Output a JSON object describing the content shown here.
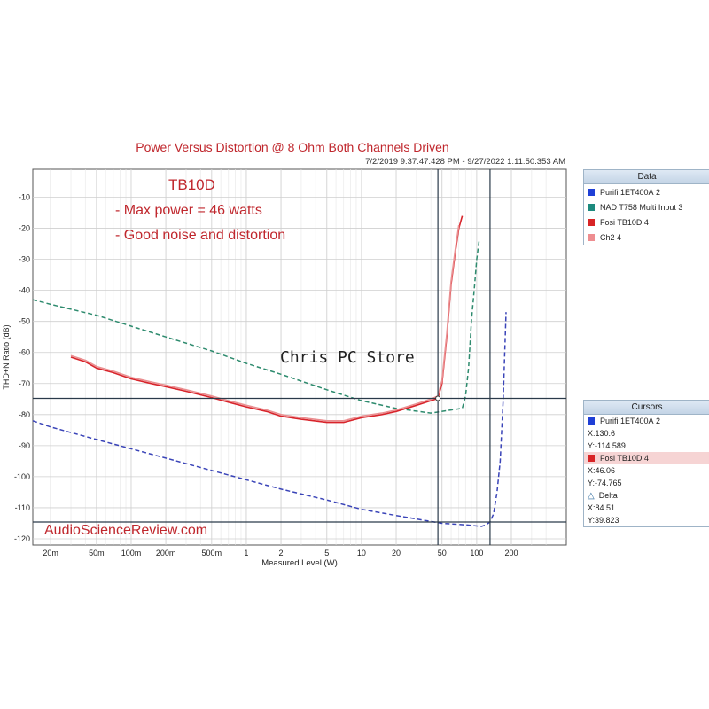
{
  "chart_data": {
    "type": "line",
    "title": "Power Versus Distortion @ 8 Ohm Both Channels Driven",
    "timestamp": "7/2/2019 9:37:47.428 PM - 9/27/2022 1:11:50.353 AM",
    "xlabel": "Measured Level (W)",
    "ylabel": "THD+N Ratio (dB)",
    "x_scale": "log",
    "xlim": [
      0.014,
      600
    ],
    "ylim": [
      -122,
      -1
    ],
    "x_ticks": [
      0.02,
      0.05,
      0.1,
      0.2,
      0.5,
      1,
      2,
      5,
      10,
      20,
      50,
      100,
      200
    ],
    "x_tick_labels": [
      "20m",
      "50m",
      "100m",
      "200m",
      "500m",
      "1",
      "2",
      "5",
      "10",
      "20",
      "50",
      "100",
      "200"
    ],
    "y_ticks": [
      -10,
      -20,
      -30,
      -40,
      -50,
      -60,
      -70,
      -80,
      -90,
      -100,
      -110,
      -120
    ],
    "y_tick_labels": [
      "-10",
      "-20",
      "-30",
      "-40",
      "-50",
      "-60",
      "-70",
      "-80",
      "-90",
      "-100",
      "-110",
      "-120"
    ],
    "grid": true,
    "series": [
      {
        "name": "Purifi 1ET400A",
        "color": "#3a44b8",
        "style": "dashed",
        "x": [
          0.014,
          0.02,
          0.05,
          0.1,
          0.2,
          0.5,
          1,
          2,
          5,
          10,
          20,
          50,
          80,
          110,
          120,
          130,
          140,
          150,
          160,
          170,
          180
        ],
        "y": [
          -82,
          -84,
          -88,
          -91,
          -94,
          -98,
          -101,
          -104,
          -107.5,
          -110.5,
          -112.5,
          -115,
          -115.5,
          -116,
          -115.5,
          -114.6,
          -112,
          -105,
          -95,
          -75,
          -47
        ]
      },
      {
        "name": "NAD T758 Multi Input",
        "color": "#2e8b6e",
        "style": "dashed",
        "x": [
          0.014,
          0.02,
          0.05,
          0.1,
          0.2,
          0.5,
          1,
          2,
          5,
          10,
          20,
          40,
          60,
          75,
          80,
          85,
          90,
          95,
          100,
          105
        ],
        "y": [
          -43,
          -44.5,
          -48,
          -51.5,
          -55,
          -59.5,
          -63.5,
          -67,
          -72,
          -75.5,
          -78,
          -79.5,
          -78.5,
          -78,
          -74,
          -65,
          -50,
          -40,
          -30,
          -24
        ]
      },
      {
        "name": "Fosi TB10D",
        "color": "#d8242b",
        "style": "solid",
        "x": [
          0.03,
          0.04,
          0.05,
          0.07,
          0.1,
          0.15,
          0.2,
          0.3,
          0.5,
          0.7,
          1,
          1.5,
          2,
          3,
          5,
          7,
          10,
          15,
          20,
          30,
          40,
          46,
          50,
          55,
          60,
          65,
          70,
          75
        ],
        "y": [
          -61.5,
          -63,
          -65,
          -66.5,
          -68.5,
          -70,
          -71,
          -72.5,
          -74.5,
          -76,
          -77.5,
          -79,
          -80.5,
          -81.5,
          -82.5,
          -82.5,
          -81,
          -80,
          -79,
          -77,
          -75.5,
          -74.8,
          -70,
          -55,
          -38,
          -28,
          -20,
          -16
        ]
      },
      {
        "name": "Ch2",
        "color": "#ea8f91",
        "style": "solid",
        "x": [
          0.03,
          0.04,
          0.05,
          0.07,
          0.1,
          0.15,
          0.2,
          0.3,
          0.5,
          0.7,
          1,
          1.5,
          2,
          3,
          5,
          7,
          10,
          15,
          20,
          30,
          40,
          46,
          50,
          55,
          60,
          65,
          70
        ],
        "y": [
          -61,
          -62.5,
          -64.5,
          -66,
          -68,
          -69.5,
          -70.5,
          -72,
          -74,
          -75.5,
          -77,
          -78.5,
          -80,
          -81,
          -82,
          -82,
          -80.5,
          -79.5,
          -78.5,
          -76.5,
          -75,
          -74,
          -69,
          -54,
          -37,
          -27,
          -19
        ]
      }
    ],
    "cursor_lines": {
      "x": [
        46.06,
        130.6
      ],
      "y": [
        -74.765,
        -114.589
      ]
    },
    "annotations": {
      "heading": "TB10D",
      "line1": "- Max power = 46 watts",
      "line2": "- Good noise and distortion"
    }
  },
  "watermark": "Chris PC Store",
  "site_label": "AudioScienceReview.com",
  "data_panel": {
    "title": "Data",
    "items": [
      {
        "label": "Purifi 1ET400A",
        "channel": "2",
        "color": "#1f3fd6"
      },
      {
        "label": "NAD T758 Multi Input",
        "channel": "3",
        "color": "#1c8a7e"
      },
      {
        "label": "Fosi TB10D",
        "channel": "4",
        "color": "#d82426"
      },
      {
        "label": "Ch2",
        "channel": "4",
        "color": "#ee8d90"
      }
    ]
  },
  "cursors_panel": {
    "title": "Cursors",
    "c1": {
      "label": "Purifi 1ET400A",
      "channel": "2",
      "color": "#1f3fd6",
      "x": "X:130.6",
      "y": "Y:-114.589"
    },
    "c2": {
      "label": "Fosi TB10D",
      "channel": "4",
      "color": "#d82426",
      "x": "X:46.06",
      "y": "Y:-74.765"
    },
    "delta": {
      "label": "Delta",
      "x": "X:84.51",
      "y": "Y:39.823"
    }
  }
}
